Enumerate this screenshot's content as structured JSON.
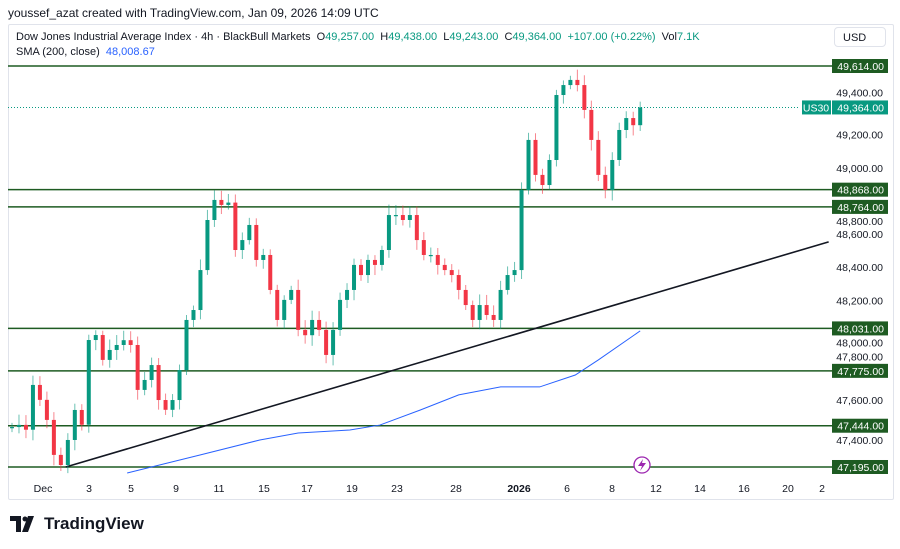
{
  "credit": "youssef_azat created with TradingView.com, Jan 09, 2026 14:09 UTC",
  "legend": {
    "symbol": "Dow Jones Industrial Average Index · 4h · BlackBull Markets",
    "o_label": "O",
    "o": "49,257.00",
    "h_label": "H",
    "h": "49,438.00",
    "l_label": "L",
    "l": "49,243.00",
    "c_label": "C",
    "c": "49,364.00",
    "change": "+107.00 (+0.22%)",
    "vol_label": "Vol",
    "vol": "7.1K",
    "sma_label": "SMA (200, close)",
    "sma_value": "48,008.67"
  },
  "currency_button": "USD",
  "logo_text": "TradingView",
  "colors": {
    "up": "#089981",
    "down": "#f23645",
    "level": "#1e5b22",
    "sma": "#2962ff",
    "trend": "#131722",
    "last": "#089981"
  },
  "chart_data": {
    "type": "candlestick",
    "interval": "4h",
    "ylim": [
      47130,
      49680
    ],
    "closes": [
      47436,
      47449,
      47420,
      47690,
      47600,
      47479,
      47268,
      47207,
      47358,
      47539,
      47450,
      47961,
      47991,
      47841,
      47901,
      47931,
      47960,
      47931,
      47660,
      47720,
      47810,
      47599,
      47540,
      47599,
      47780,
      48082,
      48142,
      48383,
      48685,
      48806,
      48776,
      48790,
      48504,
      48564,
      48655,
      48444,
      48474,
      48263,
      48082,
      48203,
      48263,
      48022,
      47990,
      48082,
      48022,
      47871,
      48022,
      48203,
      48263,
      48414,
      48353,
      48444,
      48414,
      48504,
      48715,
      48715,
      48685,
      48715,
      48564,
      48474,
      48474,
      48414,
      48383,
      48353,
      48263,
      48172,
      48082,
      48172,
      48112,
      48082,
      48263,
      48353,
      48383,
      48866,
      49168,
      48957,
      48896,
      49047,
      49439,
      49499,
      49530,
      49499,
      49349,
      49168,
      48957,
      48866,
      49047,
      49228,
      49300,
      49257,
      49364
    ],
    "first_open": 47430,
    "sma": [
      [
        16.5,
        47159
      ],
      [
        27,
        47268
      ],
      [
        35.5,
        47358
      ],
      [
        41,
        47400
      ],
      [
        48.4,
        47418
      ],
      [
        52.7,
        47448
      ],
      [
        58.5,
        47539
      ],
      [
        64,
        47630
      ],
      [
        70,
        47678
      ],
      [
        75.6,
        47678
      ],
      [
        80.7,
        47750
      ],
      [
        84,
        47841
      ],
      [
        90,
        48016
      ]
    ],
    "trendline": [
      [
        7.7,
        47195
      ],
      [
        117,
        48553
      ]
    ],
    "levels": [
      "49,614.00",
      "48,868.00",
      "48,764.00",
      "48,031.00",
      "47,775.00",
      "47,444.00",
      "47,195.00"
    ],
    "level_values": [
      49614,
      48868,
      48764,
      48031,
      47775,
      47444,
      47195
    ],
    "price_ticks": [
      "49,400.00",
      "49,200.00",
      "49,000.00",
      "48,800.00",
      "48,600.00",
      "48,400.00",
      "48,200.00",
      "48,000.00",
      "47,800.00",
      "47,600.00",
      "47,400.00"
    ],
    "price_tick_values": [
      49400,
      49200,
      49000,
      48800,
      48600,
      48400,
      48200,
      48000,
      47800,
      47600,
      47400
    ],
    "last_price": "49,364.00",
    "last_price_value": 49364,
    "symbol_tag": "US30",
    "x_ticks": [
      "Dec",
      "3",
      "5",
      "9",
      "11",
      "15",
      "17",
      "19",
      "23",
      "28",
      "2026",
      "6",
      "8",
      "12",
      "14",
      "16",
      "20",
      "2"
    ]
  }
}
